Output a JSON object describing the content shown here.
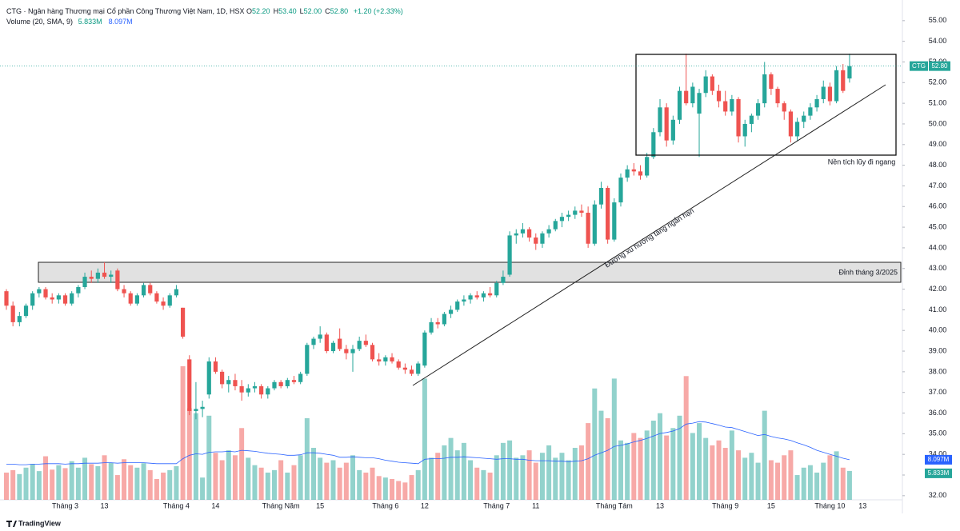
{
  "chart_data": {
    "type": "candlestick",
    "title": "CTG · Ngân hàng Thương mại Cổ phần Công Thương Việt Nam, 1D, HSX",
    "ohlc": [
      {
        "label": "O",
        "value": "52.20"
      },
      {
        "label": "H",
        "value": "53.40"
      },
      {
        "label": "L",
        "value": "52.00"
      },
      {
        "label": "C",
        "value": "52.80"
      }
    ],
    "change": "+1.20 (+2.33%)",
    "volume_indicator": {
      "label": "Volume (20, SMA, 9)",
      "value": "5.833M",
      "sma": "8.097M"
    },
    "price_badge": {
      "symbol": "CTG",
      "price": "52.80"
    },
    "annotations": {
      "range": "Nền tích lũy đi ngang",
      "trend": "Đường xu hướng tăng ngắn hạn",
      "peak": "Đỉnh tháng 3/2025"
    },
    "footer": "TradingView",
    "up_color": "#26a69a",
    "down_color": "#ef5350",
    "sma_color": "#2962ff",
    "ylim": [
      31.8,
      56.0
    ],
    "yticks": [
      {
        "value": 32,
        "label": "32.00"
      },
      {
        "value": 33,
        "label": "33.00"
      },
      {
        "value": 34,
        "label": "34.00"
      },
      {
        "value": 35,
        "label": "35.00"
      },
      {
        "value": 36,
        "label": "36.00"
      },
      {
        "value": 37,
        "label": "37.00"
      },
      {
        "value": 38,
        "label": "38.00"
      },
      {
        "value": 39,
        "label": "39.00"
      },
      {
        "value": 40,
        "label": "40.00"
      },
      {
        "value": 41,
        "label": "41.00"
      },
      {
        "value": 42,
        "label": "42.00"
      },
      {
        "value": 43,
        "label": "43.00"
      },
      {
        "value": 44,
        "label": "44.00"
      },
      {
        "value": 45,
        "label": "45.00"
      },
      {
        "value": 46,
        "label": "46.00"
      },
      {
        "value": 47,
        "label": "47.00"
      },
      {
        "value": 48,
        "label": "48.00"
      },
      {
        "value": 49,
        "label": "49.00"
      },
      {
        "value": 50,
        "label": "50.00"
      },
      {
        "value": 51,
        "label": "51.00"
      },
      {
        "value": 52,
        "label": "52.00"
      },
      {
        "value": 53,
        "label": "53.00"
      },
      {
        "value": 54,
        "label": "54.00"
      },
      {
        "value": 55,
        "label": "55.00"
      }
    ],
    "volume_lim": [
      0,
      101
    ],
    "categories": [
      null,
      null,
      null,
      null,
      null,
      null,
      null,
      null,
      null,
      "Tháng 3",
      null,
      null,
      null,
      null,
      null,
      "13",
      null,
      null,
      null,
      null,
      null,
      null,
      null,
      null,
      null,
      null,
      "Tháng 4",
      null,
      null,
      null,
      null,
      null,
      "14",
      null,
      null,
      null,
      null,
      null,
      null,
      null,
      null,
      null,
      "Tháng Năm",
      null,
      null,
      null,
      null,
      null,
      "15",
      null,
      null,
      null,
      null,
      null,
      null,
      null,
      null,
      null,
      "Tháng 6",
      null,
      null,
      null,
      null,
      null,
      "12",
      null,
      null,
      null,
      null,
      null,
      null,
      null,
      null,
      null,
      null,
      "Tháng 7",
      null,
      null,
      null,
      null,
      null,
      "11",
      null,
      null,
      null,
      null,
      null,
      null,
      null,
      null,
      null,
      null,
      null,
      "Tháng Tám",
      null,
      null,
      null,
      null,
      null,
      null,
      "13",
      null,
      null,
      null,
      null,
      null,
      null,
      null,
      null,
      null,
      "Tháng 9",
      null,
      null,
      null,
      null,
      null,
      null,
      "15",
      null,
      null,
      null,
      null,
      null,
      null,
      null,
      null,
      "Tháng 10",
      null,
      null,
      null,
      null,
      "13"
    ],
    "candles": [
      [
        41.9,
        42.0,
        41.0,
        41.2
      ],
      [
        41.2,
        41.4,
        40.2,
        40.4
      ],
      [
        40.4,
        40.9,
        40.2,
        40.7
      ],
      [
        40.7,
        41.3,
        40.6,
        41.2
      ],
      [
        41.2,
        41.9,
        41.0,
        41.8
      ],
      [
        41.8,
        42.1,
        41.6,
        42.0
      ],
      [
        42.0,
        42.1,
        41.5,
        41.6
      ],
      [
        41.6,
        41.8,
        41.3,
        41.5
      ],
      [
        41.5,
        41.8,
        41.3,
        41.7
      ],
      [
        41.7,
        41.8,
        41.2,
        41.3
      ],
      [
        41.3,
        41.9,
        41.2,
        41.8
      ],
      [
        41.8,
        42.2,
        41.6,
        42.1
      ],
      [
        42.1,
        42.8,
        42.0,
        42.6
      ],
      [
        42.6,
        42.9,
        42.3,
        42.5
      ],
      [
        42.5,
        43.0,
        42.3,
        42.8
      ],
      [
        42.8,
        43.3,
        42.5,
        42.6
      ],
      [
        42.6,
        42.9,
        42.3,
        42.7
      ],
      [
        42.9,
        43.0,
        41.9,
        42.0
      ],
      [
        42.0,
        42.2,
        41.6,
        41.8
      ],
      [
        41.8,
        41.9,
        41.2,
        41.3
      ],
      [
        41.3,
        41.8,
        41.2,
        41.7
      ],
      [
        41.7,
        42.3,
        41.6,
        42.2
      ],
      [
        42.2,
        42.3,
        41.7,
        41.8
      ],
      [
        41.8,
        41.9,
        41.3,
        41.4
      ],
      [
        41.4,
        41.6,
        41.0,
        41.2
      ],
      [
        41.2,
        41.8,
        41.1,
        41.7
      ],
      [
        41.7,
        42.2,
        41.6,
        42.0
      ],
      [
        41.1,
        41.1,
        39.6,
        39.7
      ],
      [
        38.6,
        38.8,
        35.9,
        36.1
      ],
      [
        36.1,
        37.5,
        35.7,
        36.2
      ],
      [
        36.2,
        36.6,
        35.8,
        36.3
      ],
      [
        36.9,
        38.7,
        36.7,
        38.5
      ],
      [
        38.5,
        38.7,
        37.9,
        38.0
      ],
      [
        38.0,
        38.1,
        37.2,
        37.4
      ],
      [
        37.4,
        37.8,
        37.0,
        37.6
      ],
      [
        37.6,
        37.9,
        37.1,
        37.3
      ],
      [
        37.3,
        37.6,
        36.6,
        37.0
      ],
      [
        37.0,
        37.4,
        36.8,
        37.2
      ],
      [
        37.2,
        37.5,
        37.0,
        37.3
      ],
      [
        37.3,
        37.4,
        36.7,
        36.9
      ],
      [
        36.9,
        37.3,
        36.7,
        37.2
      ],
      [
        37.2,
        37.6,
        37.1,
        37.5
      ],
      [
        37.5,
        37.6,
        37.2,
        37.3
      ],
      [
        37.3,
        37.7,
        37.2,
        37.6
      ],
      [
        37.6,
        37.8,
        37.4,
        37.5
      ],
      [
        37.5,
        38.0,
        37.4,
        37.9
      ],
      [
        37.9,
        39.4,
        37.8,
        39.3
      ],
      [
        39.3,
        39.7,
        39.1,
        39.6
      ],
      [
        39.6,
        40.2,
        39.4,
        39.8
      ],
      [
        39.8,
        39.9,
        38.9,
        39.0
      ],
      [
        39.0,
        39.5,
        38.9,
        39.4
      ],
      [
        39.6,
        40.1,
        39.0,
        39.1
      ],
      [
        39.1,
        39.3,
        38.6,
        38.9
      ],
      [
        38.9,
        39.3,
        38.0,
        39.1
      ],
      [
        39.1,
        39.7,
        39.0,
        39.5
      ],
      [
        39.5,
        39.8,
        39.2,
        39.3
      ],
      [
        39.3,
        39.4,
        38.5,
        38.6
      ],
      [
        38.6,
        38.9,
        38.3,
        38.5
      ],
      [
        38.5,
        38.8,
        38.3,
        38.7
      ],
      [
        38.7,
        38.9,
        38.4,
        38.5
      ],
      [
        38.5,
        38.6,
        38.1,
        38.2
      ],
      [
        38.2,
        38.4,
        37.9,
        38.1
      ],
      [
        38.1,
        38.3,
        37.8,
        37.9
      ],
      [
        37.9,
        38.5,
        37.8,
        38.4
      ],
      [
        38.3,
        40.0,
        38.2,
        39.9
      ],
      [
        39.9,
        40.6,
        39.8,
        40.4
      ],
      [
        40.4,
        40.6,
        40.1,
        40.3
      ],
      [
        40.3,
        40.9,
        40.2,
        40.8
      ],
      [
        40.8,
        41.2,
        40.6,
        41.0
      ],
      [
        41.0,
        41.5,
        40.9,
        41.4
      ],
      [
        41.4,
        41.7,
        41.2,
        41.5
      ],
      [
        41.5,
        41.8,
        41.3,
        41.7
      ],
      [
        41.7,
        41.9,
        41.5,
        41.6
      ],
      [
        41.6,
        41.9,
        41.4,
        41.8
      ],
      [
        41.8,
        42.1,
        41.6,
        41.7
      ],
      [
        41.7,
        42.4,
        41.6,
        42.3
      ],
      [
        42.3,
        42.9,
        42.2,
        42.6
      ],
      [
        42.7,
        44.8,
        42.6,
        44.6
      ],
      [
        44.6,
        44.9,
        44.2,
        44.7
      ],
      [
        44.7,
        45.2,
        44.5,
        44.9
      ],
      [
        44.9,
        45.0,
        44.3,
        44.5
      ],
      [
        44.5,
        44.7,
        43.9,
        44.2
      ],
      [
        44.2,
        44.8,
        44.0,
        44.7
      ],
      [
        44.7,
        45.1,
        44.5,
        44.9
      ],
      [
        44.9,
        45.4,
        44.8,
        45.3
      ],
      [
        45.3,
        45.7,
        45.0,
        45.5
      ],
      [
        45.5,
        45.8,
        45.3,
        45.6
      ],
      [
        45.6,
        46.0,
        45.4,
        45.8
      ],
      [
        45.8,
        46.1,
        45.5,
        45.7
      ],
      [
        45.7,
        46.0,
        44.0,
        44.2
      ],
      [
        44.2,
        46.3,
        44.1,
        46.1
      ],
      [
        46.1,
        47.2,
        45.9,
        46.9
      ],
      [
        46.9,
        47.0,
        44.2,
        44.4
      ],
      [
        44.4,
        46.4,
        44.3,
        46.2
      ],
      [
        46.2,
        47.6,
        46.0,
        47.4
      ],
      [
        47.4,
        48.0,
        47.2,
        47.8
      ],
      [
        47.8,
        48.1,
        47.5,
        47.7
      ],
      [
        47.7,
        48.0,
        47.3,
        47.5
      ],
      [
        47.5,
        48.6,
        47.4,
        48.4
      ],
      [
        48.4,
        49.8,
        48.3,
        49.6
      ],
      [
        49.6,
        51.2,
        49.4,
        50.8
      ],
      [
        50.8,
        51.0,
        48.9,
        49.2
      ],
      [
        49.2,
        50.4,
        49.0,
        50.2
      ],
      [
        50.2,
        51.8,
        50.0,
        51.6
      ],
      [
        51.6,
        53.4,
        50.9,
        51.0
      ],
      [
        51.0,
        52.0,
        50.8,
        51.8
      ],
      [
        50.5,
        51.7,
        48.4,
        51.5
      ],
      [
        51.5,
        52.6,
        51.3,
        52.3
      ],
      [
        52.3,
        52.4,
        51.4,
        51.6
      ],
      [
        51.6,
        51.9,
        50.8,
        51.1
      ],
      [
        51.1,
        51.6,
        50.4,
        50.6
      ],
      [
        50.6,
        51.4,
        50.4,
        51.2
      ],
      [
        51.2,
        51.3,
        49.1,
        49.4
      ],
      [
        49.4,
        50.2,
        48.9,
        50.0
      ],
      [
        50.0,
        50.5,
        49.6,
        50.4
      ],
      [
        50.4,
        51.2,
        50.2,
        51.0
      ],
      [
        51.0,
        53.0,
        50.8,
        52.4
      ],
      [
        52.4,
        52.5,
        51.4,
        51.7
      ],
      [
        51.7,
        51.8,
        50.8,
        51.0
      ],
      [
        51.0,
        51.1,
        50.2,
        50.6
      ],
      [
        50.6,
        50.7,
        49.1,
        49.4
      ],
      [
        49.4,
        50.3,
        49.2,
        50.1
      ],
      [
        50.1,
        50.6,
        49.8,
        50.4
      ],
      [
        50.4,
        51.0,
        50.2,
        50.8
      ],
      [
        50.8,
        51.4,
        50.6,
        51.2
      ],
      [
        51.2,
        52.1,
        51.0,
        51.8
      ],
      [
        51.8,
        52.0,
        50.9,
        51.1
      ],
      [
        51.1,
        52.8,
        51.0,
        52.6
      ],
      [
        52.6,
        52.9,
        51.5,
        51.6
      ],
      [
        52.2,
        53.4,
        52.0,
        52.8
      ],
      null,
      null
    ],
    "volume": [
      5.5,
      6.0,
      5.2,
      6.5,
      7.2,
      5.8,
      8.8,
      6.1,
      7.0,
      6.4,
      7.8,
      6.5,
      8.5,
      7.2,
      6.8,
      9.0,
      7.5,
      5.0,
      8.2,
      7.0,
      6.5,
      7.4,
      6.0,
      4.2,
      5.5,
      6.0,
      6.8,
      27.0,
      18.5,
      17.5,
      4.5,
      17.0,
      9.5,
      8.0,
      10.0,
      9.0,
      14.5,
      8.5,
      7.0,
      6.5,
      5.5,
      6.0,
      8.0,
      5.5,
      7.0,
      9.0,
      16.5,
      10.5,
      8.5,
      7.5,
      8.0,
      6.5,
      7.5,
      9.0,
      6.0,
      5.5,
      6.5,
      4.8,
      4.5,
      4.2,
      3.8,
      3.5,
      5.0,
      6.0,
      24.5,
      8.5,
      9.5,
      11.0,
      12.5,
      10.0,
      11.5,
      8.0,
      6.5,
      6.0,
      5.5,
      9.0,
      11.5,
      12.0,
      8.5,
      9.0,
      10.0,
      7.5,
      9.5,
      11.0,
      8.5,
      9.5,
      8.0,
      10.5,
      11.0,
      15.5,
      22.5,
      18.0,
      16.5,
      24.5,
      12.0,
      11.5,
      13.5,
      12.5,
      14.0,
      16.0,
      17.5,
      13.0,
      14.5,
      17.0,
      25.0,
      13.5,
      15.5,
      12.5,
      11.0,
      12.0,
      10.5,
      14.0,
      10.0,
      8.5,
      9.5,
      7.5,
      18.0,
      8.0,
      7.5,
      9.0,
      10.0,
      5.0,
      6.5,
      7.0,
      5.5,
      7.5,
      9.0,
      9.8,
      6.5,
      5.833,
      null,
      null
    ],
    "volume_sma": [
      7.2,
      7.2,
      7.1,
      7.1,
      7.2,
      7.2,
      7.3,
      7.3,
      7.3,
      7.2,
      7.3,
      7.3,
      7.4,
      7.4,
      7.4,
      7.5,
      7.5,
      7.4,
      7.5,
      7.5,
      7.5,
      7.5,
      7.4,
      7.3,
      7.3,
      7.3,
      7.3,
      8.3,
      9.0,
      9.3,
      9.2,
      9.6,
      9.7,
      9.7,
      9.8,
      9.7,
      10.0,
      9.9,
      9.8,
      9.6,
      9.4,
      9.3,
      9.2,
      9.0,
      9.0,
      9.1,
      9.5,
      9.5,
      9.4,
      9.2,
      9.0,
      8.6,
      8.6,
      8.7,
      8.6,
      8.5,
      8.5,
      8.3,
      8.0,
      7.8,
      7.6,
      7.5,
      7.4,
      7.3,
      8.2,
      8.3,
      8.3,
      8.4,
      8.6,
      8.6,
      8.7,
      8.6,
      8.5,
      8.4,
      8.3,
      8.2,
      8.3,
      8.3,
      8.2,
      8.2,
      8.0,
      7.9,
      7.9,
      7.9,
      7.8,
      7.8,
      7.7,
      7.8,
      7.9,
      8.3,
      9.0,
      9.5,
      10.0,
      10.8,
      11.0,
      11.3,
      11.7,
      12.0,
      12.4,
      12.9,
      13.4,
      13.6,
      13.9,
      14.4,
      15.3,
      15.5,
      15.8,
      15.7,
      15.4,
      15.1,
      14.7,
      14.6,
      14.2,
      13.8,
      13.4,
      13.0,
      13.2,
      12.8,
      12.5,
      12.3,
      12.0,
      11.5,
      11.1,
      10.6,
      10.0,
      9.6,
      9.2,
      8.8,
      8.4,
      8.097,
      null,
      null
    ]
  }
}
